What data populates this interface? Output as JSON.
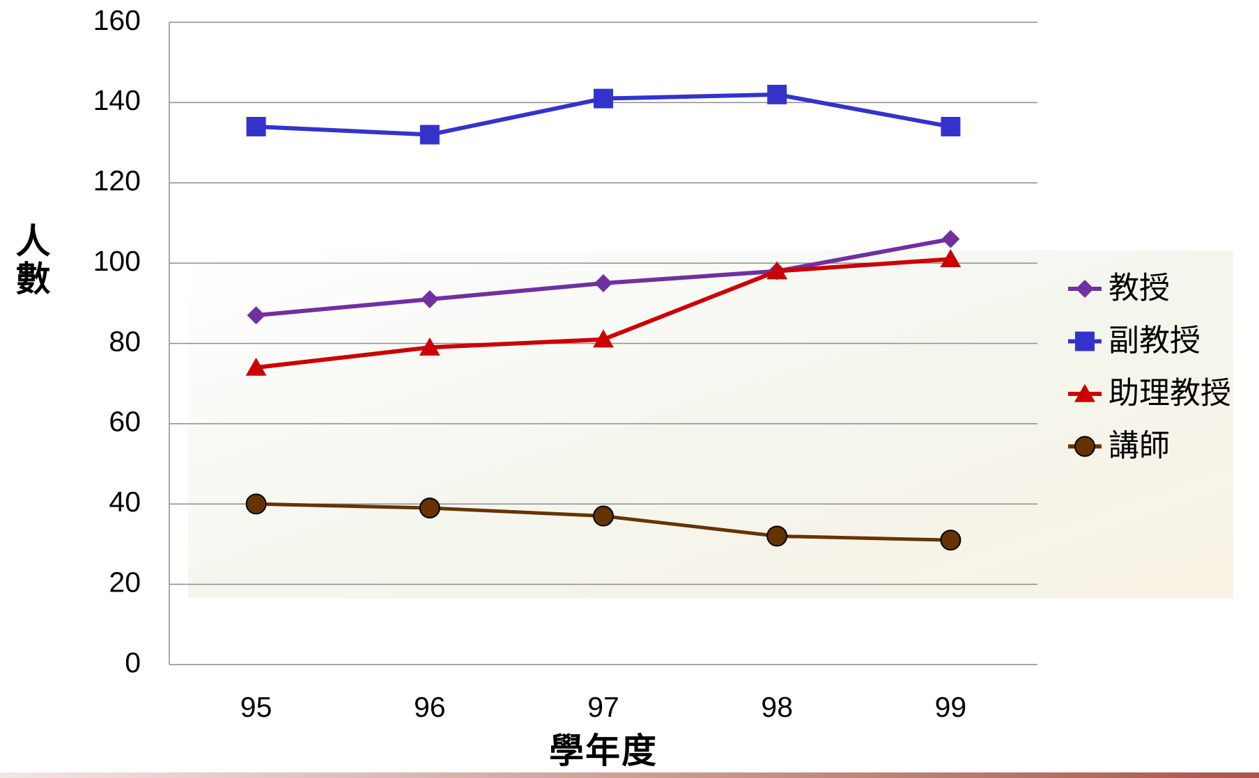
{
  "chart_data": {
    "type": "line",
    "x_label": "學年度",
    "y_label": "人數",
    "categories": [
      "95",
      "96",
      "97",
      "98",
      "99"
    ],
    "series": [
      {
        "name": "教授",
        "color": "#7030a0",
        "marker": "diamond",
        "values": [
          87,
          91,
          95,
          98,
          106
        ]
      },
      {
        "name": "副教授",
        "color": "#3333cc",
        "marker": "square",
        "values": [
          134,
          132,
          141,
          142,
          134
        ]
      },
      {
        "name": "助理教授",
        "color": "#cc0000",
        "marker": "triangle",
        "values": [
          74,
          79,
          81,
          98,
          101
        ]
      },
      {
        "name": "講師",
        "color": "#663300",
        "marker": "circle",
        "values": [
          40,
          39,
          37,
          32,
          31
        ]
      }
    ],
    "ylim": [
      0,
      160
    ],
    "yticks": [
      0,
      20,
      40,
      60,
      80,
      100,
      120,
      140,
      160
    ],
    "grid": true,
    "legend": "right"
  }
}
